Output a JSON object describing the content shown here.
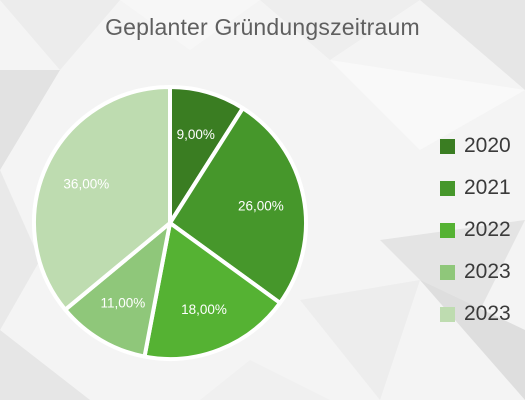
{
  "chart_data": {
    "type": "pie",
    "title": "Geplanter Gründungszeitraum",
    "slices": [
      {
        "name": "2020",
        "value": 9,
        "label": "9,00%",
        "color": "#3a7d22"
      },
      {
        "name": "2021",
        "value": 26,
        "label": "26,00%",
        "color": "#46972b"
      },
      {
        "name": "2022",
        "value": 18,
        "label": "18,00%",
        "color": "#55b233"
      },
      {
        "name": "2023",
        "value": 11,
        "label": "11,00%",
        "color": "#8fc77a"
      },
      {
        "name": "2023",
        "value": 36,
        "label": "36,00%",
        "color": "#bedcb0"
      }
    ],
    "legend_position": "right",
    "background": "light-gray-low-poly"
  }
}
